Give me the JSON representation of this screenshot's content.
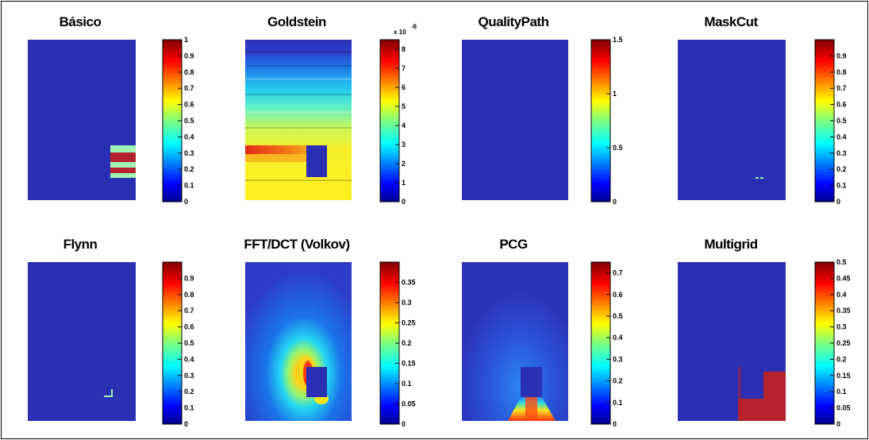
{
  "colors": {
    "background": "#ffffff",
    "border": "#000000",
    "field_low": "#2b2fb3",
    "colormap": "jet"
  },
  "chart_data": [
    {
      "type": "heatmap",
      "title": "Básico",
      "colorbar": {
        "min": 0,
        "max": 1,
        "ticks": [
          "0",
          "0.1",
          "0.2",
          "0.3",
          "0.4",
          "0.5",
          "0.6",
          "0.7",
          "0.8",
          "0.9",
          "1"
        ]
      },
      "pattern": "three horizontal bands near lower right edge: light green / dark red / light green",
      "values_shown": {
        "background": 0,
        "bands": [
          0.4,
          1.0,
          0.4
        ]
      }
    },
    {
      "type": "heatmap",
      "title": "Goldstein",
      "colorbar": {
        "min": 0,
        "max": 8.5,
        "scale_label": "x 10",
        "scale_exponent": "-6",
        "ticks": [
          "0",
          "1",
          "2",
          "3",
          "4",
          "5",
          "6",
          "7",
          "8"
        ]
      },
      "pattern": "horizontal gradient bands, blue at top to yellow at bottom, red band at left of mask row; blue rectangular mask near center-bottom",
      "values_shown": {
        "top": 0.5,
        "middle": 3.5,
        "bottom": 6.0,
        "red_band": 7.5,
        "mask": 0
      }
    },
    {
      "type": "heatmap",
      "title": "QualityPath",
      "colorbar": {
        "min": 0,
        "max": 1.5,
        "ticks": [
          "0",
          "0.5",
          "1",
          "1.5"
        ]
      },
      "pattern": "uniform low value",
      "values_shown": {
        "background": 0
      }
    },
    {
      "type": "heatmap",
      "title": "MaskCut",
      "colorbar": {
        "min": 0,
        "max": 1,
        "ticks": [
          "0",
          "0.1",
          "0.2",
          "0.3",
          "0.4",
          "0.5",
          "0.6",
          "0.7",
          "0.8",
          "0.9"
        ]
      },
      "pattern": "uniform low value with two tiny light pixels near lower right",
      "values_shown": {
        "background": 0,
        "dots": 0.4
      }
    },
    {
      "type": "heatmap",
      "title": "Flynn",
      "colorbar": {
        "min": 0,
        "max": 1,
        "ticks": [
          "0",
          "0.1",
          "0.2",
          "0.3",
          "0.4",
          "0.5",
          "0.6",
          "0.7",
          "0.8",
          "0.9"
        ]
      },
      "pattern": "uniform low value with small L-shaped light mark near lower right",
      "values_shown": {
        "background": 0,
        "mark": 0.4
      }
    },
    {
      "type": "heatmap",
      "title": "FFT/DCT (Volkov)",
      "colorbar": {
        "min": 0,
        "max": 0.4,
        "ticks": [
          "0",
          "0.05",
          "0.1",
          "0.15",
          "0.2",
          "0.25",
          "0.3",
          "0.35"
        ]
      },
      "pattern": "dipole-like field centered on a blue rectangular mask, high values (red/yellow) at left and below mask, cyan halo",
      "values_shown": {
        "background": 0.05,
        "peak": 0.38,
        "mask": 0
      }
    },
    {
      "type": "heatmap",
      "title": "PCG",
      "colorbar": {
        "min": 0,
        "max": 0.75,
        "ticks": [
          "0",
          "0.1",
          "0.2",
          "0.3",
          "0.4",
          "0.5",
          "0.6",
          "0.7"
        ]
      },
      "pattern": "low field with faint lobes around a blue rectangular mask; strong red/yellow plume below mask to bottom edge",
      "values_shown": {
        "background": 0.05,
        "plume": 0.7,
        "mask": 0
      }
    },
    {
      "type": "heatmap",
      "title": "Multigrid",
      "colorbar": {
        "min": 0,
        "max": 0.5,
        "ticks": [
          "0",
          "0.05",
          "0.1",
          "0.15",
          "0.2",
          "0.25",
          "0.3",
          "0.35",
          "0.4",
          "0.45",
          "0.5"
        ]
      },
      "pattern": "low field with large dark red L-shaped block in lower right around a blue mask",
      "values_shown": {
        "background": 0,
        "block": 0.5,
        "mask": 0
      }
    }
  ]
}
